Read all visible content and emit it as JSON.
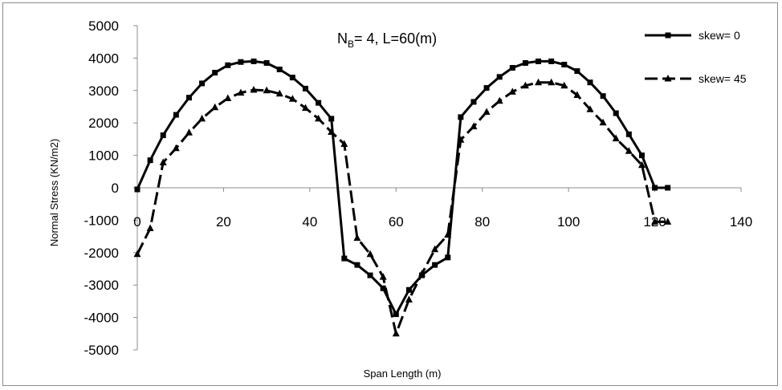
{
  "chart_data": {
    "type": "line",
    "title": "",
    "annotation": {
      "prefix": "N",
      "sub": "B",
      "rest": "= 4, L=60(m)"
    },
    "xlabel": "Span Length (m)",
    "ylabel": "Normal Stress (KN/m2)",
    "xlim": [
      0,
      140
    ],
    "ylim": [
      -5000,
      5000
    ],
    "xticks": [
      0,
      20,
      40,
      60,
      80,
      100,
      120,
      140
    ],
    "yticks": [
      5000,
      4000,
      3000,
      2000,
      1000,
      0,
      -1000,
      -2000,
      -3000,
      -4000,
      -5000
    ],
    "grid": false,
    "legend_position": "top-right",
    "series": [
      {
        "name": "skew= 0",
        "marker": "square",
        "dash": "solid",
        "x": [
          0,
          3,
          6,
          9,
          12,
          15,
          18,
          21,
          24,
          27,
          30,
          33,
          36,
          39,
          42,
          45,
          48,
          51,
          54,
          57,
          60,
          63,
          66,
          69,
          72,
          75,
          78,
          81,
          84,
          87,
          90,
          93,
          96,
          99,
          102,
          105,
          108,
          111,
          114,
          117,
          120,
          123
        ],
        "y": [
          -50,
          850,
          1620,
          2250,
          2780,
          3220,
          3550,
          3780,
          3880,
          3900,
          3850,
          3650,
          3400,
          3060,
          2620,
          2130,
          -2180,
          -2380,
          -2700,
          -3100,
          -3900,
          -3150,
          -2700,
          -2380,
          -2150,
          2180,
          2650,
          3080,
          3420,
          3700,
          3850,
          3900,
          3900,
          3800,
          3600,
          3250,
          2830,
          2300,
          1650,
          1000,
          0,
          0
        ]
      },
      {
        "name": "skew= 45",
        "marker": "triangle",
        "dash": "dashed",
        "x": [
          0,
          3,
          6,
          9,
          12,
          15,
          18,
          21,
          24,
          27,
          30,
          33,
          36,
          39,
          42,
          45,
          48,
          51,
          54,
          57,
          60,
          63,
          66,
          69,
          72,
          75,
          78,
          81,
          84,
          87,
          90,
          93,
          96,
          99,
          102,
          105,
          108,
          111,
          114,
          117,
          120,
          123
        ],
        "y": [
          -2050,
          -1250,
          780,
          1220,
          1700,
          2130,
          2480,
          2760,
          2930,
          3020,
          3000,
          2900,
          2740,
          2460,
          2130,
          1720,
          1350,
          -1550,
          -2050,
          -2750,
          -4500,
          -3450,
          -2650,
          -1900,
          -1450,
          1480,
          1890,
          2340,
          2680,
          2960,
          3150,
          3250,
          3250,
          3150,
          2860,
          2420,
          2010,
          1520,
          1130,
          700,
          -1050,
          -1050
        ]
      }
    ]
  }
}
